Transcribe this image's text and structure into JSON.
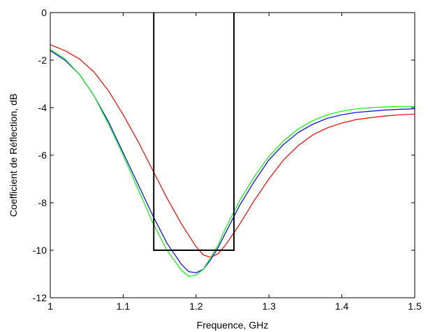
{
  "chart_data": {
    "type": "line",
    "title": "",
    "xlabel": "Frequence, GHz",
    "ylabel": "Coefficient de Réflection, dB",
    "xlim": [
      1,
      1.5
    ],
    "ylim": [
      -12,
      0
    ],
    "xticks": [
      "1",
      "1.1",
      "1.2",
      "1.3",
      "1.4",
      "1.5"
    ],
    "yticks": [
      "0",
      "-2",
      "-4",
      "-6",
      "-8",
      "-10",
      "-12"
    ],
    "grid": false,
    "legend": "none",
    "box": {
      "x": [
        1.142,
        1.142,
        1.252,
        1.252
      ],
      "y": [
        0,
        -10,
        -10,
        0
      ],
      "color": "#000000"
    },
    "series": [
      {
        "color": "#ff0000",
        "x": [
          1.0,
          1.02,
          1.04,
          1.06,
          1.08,
          1.1,
          1.12,
          1.14,
          1.16,
          1.18,
          1.2,
          1.21,
          1.22,
          1.23,
          1.24,
          1.26,
          1.28,
          1.3,
          1.32,
          1.34,
          1.36,
          1.38,
          1.4,
          1.42,
          1.44,
          1.46,
          1.48,
          1.5
        ],
        "y": [
          -1.35,
          -1.6,
          -1.95,
          -2.5,
          -3.3,
          -4.3,
          -5.4,
          -6.6,
          -7.8,
          -8.9,
          -9.85,
          -10.2,
          -10.3,
          -10.15,
          -9.8,
          -8.9,
          -7.9,
          -7.0,
          -6.2,
          -5.6,
          -5.15,
          -4.85,
          -4.65,
          -4.5,
          -4.42,
          -4.35,
          -4.3,
          -4.27
        ]
      },
      {
        "color": "#0000ff",
        "x": [
          1.0,
          1.02,
          1.04,
          1.06,
          1.08,
          1.1,
          1.12,
          1.14,
          1.16,
          1.18,
          1.19,
          1.2,
          1.21,
          1.22,
          1.23,
          1.24,
          1.26,
          1.28,
          1.3,
          1.32,
          1.34,
          1.36,
          1.38,
          1.4,
          1.42,
          1.44,
          1.46,
          1.48,
          1.5
        ],
        "y": [
          -1.6,
          -2.0,
          -2.6,
          -3.5,
          -4.6,
          -5.9,
          -7.2,
          -8.5,
          -9.7,
          -10.6,
          -10.9,
          -10.95,
          -10.8,
          -10.4,
          -9.9,
          -9.3,
          -8.1,
          -7.1,
          -6.2,
          -5.55,
          -5.05,
          -4.7,
          -4.45,
          -4.3,
          -4.2,
          -4.15,
          -4.1,
          -4.07,
          -4.05
        ]
      },
      {
        "color": "#00ff00",
        "x": [
          1.0,
          1.02,
          1.04,
          1.06,
          1.08,
          1.1,
          1.12,
          1.14,
          1.16,
          1.18,
          1.19,
          1.2,
          1.21,
          1.22,
          1.23,
          1.24,
          1.26,
          1.28,
          1.3,
          1.32,
          1.34,
          1.36,
          1.38,
          1.4,
          1.42,
          1.44,
          1.46,
          1.48,
          1.5
        ],
        "y": [
          -1.55,
          -1.95,
          -2.6,
          -3.5,
          -4.7,
          -6.0,
          -7.4,
          -8.8,
          -10.0,
          -10.85,
          -11.1,
          -11.05,
          -10.8,
          -10.3,
          -9.8,
          -9.1,
          -7.9,
          -6.9,
          -6.05,
          -5.4,
          -4.9,
          -4.55,
          -4.3,
          -4.15,
          -4.05,
          -4.0,
          -3.97,
          -3.95,
          -3.95
        ]
      }
    ]
  }
}
